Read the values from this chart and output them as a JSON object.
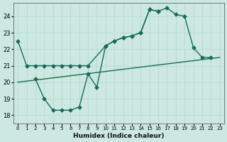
{
  "xlabel": "Humidex (Indice chaleur)",
  "ylabel": "",
  "bg_color": "#cce8e0",
  "line_color": "#1a6b5a",
  "grid_color": "#b8ddd5",
  "xlim": [
    -0.5,
    23.5
  ],
  "ylim": [
    17.5,
    24.8
  ],
  "xticks": [
    0,
    1,
    2,
    3,
    4,
    5,
    6,
    7,
    8,
    9,
    10,
    11,
    12,
    13,
    14,
    15,
    16,
    17,
    18,
    19,
    20,
    21,
    22,
    23
  ],
  "yticks": [
    18,
    19,
    20,
    21,
    22,
    23,
    24
  ],
  "line1_x": [
    0,
    1,
    2,
    3,
    4,
    5,
    6,
    7,
    8,
    10,
    11,
    12,
    13,
    14,
    15,
    16,
    17,
    18,
    19,
    20,
    21,
    22
  ],
  "line1_y": [
    22.5,
    21.0,
    21.0,
    21.0,
    21.0,
    21.0,
    21.0,
    21.0,
    21.0,
    22.2,
    22.5,
    22.7,
    22.8,
    23.0,
    24.4,
    24.3,
    24.5,
    24.1,
    24.0,
    22.1,
    21.5,
    21.5
  ],
  "line2_x": [
    2,
    3,
    4,
    5,
    6,
    7,
    8,
    9,
    10,
    11,
    12,
    13,
    14,
    15,
    16
  ],
  "line2_y": [
    20.2,
    19.0,
    18.3,
    18.3,
    18.3,
    18.5,
    20.5,
    19.7,
    22.2,
    22.5,
    22.7,
    22.8,
    23.0,
    24.4,
    24.3
  ],
  "line3_x": [
    0,
    23
  ],
  "line3_y": [
    20.0,
    21.5
  ],
  "marker": "D",
  "markersize": 2.5,
  "linewidth": 1.0
}
